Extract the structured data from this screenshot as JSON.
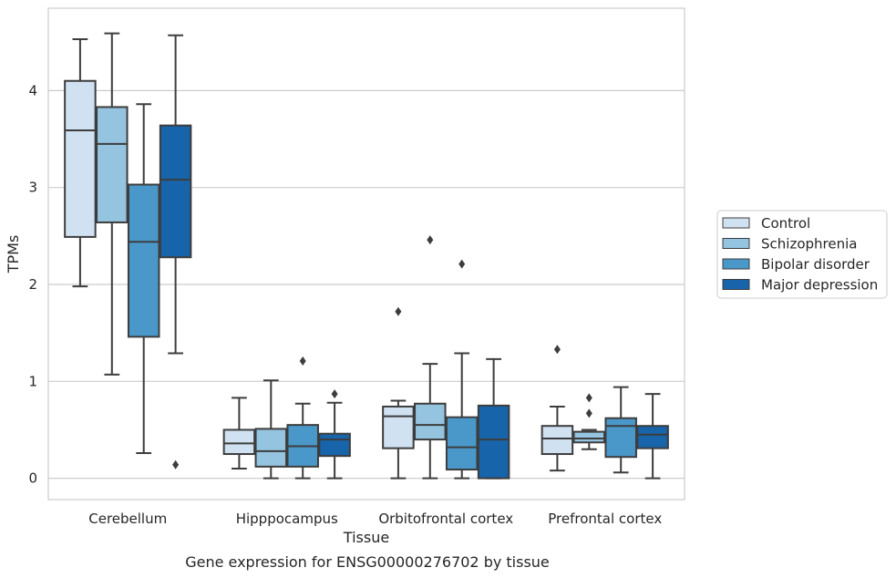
{
  "caption": "Gene expression for ENSG00000276702 by tissue",
  "chart_data": {
    "type": "box",
    "xlabel": "Tissue",
    "ylabel": "TPMs",
    "ylim": [
      -0.22,
      4.85
    ],
    "yticks": [
      0,
      1,
      2,
      3,
      4
    ],
    "ytick_labels": [
      "0",
      "1",
      "2",
      "3",
      "4"
    ],
    "grid": "horizontal",
    "legend_position": "right",
    "categories": [
      "Cerebellum",
      "Hipppocampus",
      "Orbitofrontal cortex",
      "Prefrontal cortex"
    ],
    "series": [
      {
        "name": "Control",
        "color": "#d0e1f2",
        "boxes": [
          {
            "whislo": 1.98,
            "q1": 2.49,
            "med": 3.59,
            "q3": 4.1,
            "whishi": 4.53,
            "fliers": []
          },
          {
            "whislo": 0.1,
            "q1": 0.25,
            "med": 0.36,
            "q3": 0.5,
            "whishi": 0.83,
            "fliers": []
          },
          {
            "whislo": 0.0,
            "q1": 0.31,
            "med": 0.64,
            "q3": 0.74,
            "whishi": 0.8,
            "fliers": [
              1.72
            ]
          },
          {
            "whislo": 0.08,
            "q1": 0.25,
            "med": 0.41,
            "q3": 0.54,
            "whishi": 0.74,
            "fliers": [
              1.33
            ]
          }
        ]
      },
      {
        "name": "Schizophrenia",
        "color": "#94c4df",
        "boxes": [
          {
            "whislo": 1.07,
            "q1": 2.64,
            "med": 3.45,
            "q3": 3.83,
            "whishi": 4.59,
            "fliers": []
          },
          {
            "whislo": 0.0,
            "q1": 0.12,
            "med": 0.28,
            "q3": 0.51,
            "whishi": 1.01,
            "fliers": []
          },
          {
            "whislo": 0.0,
            "q1": 0.4,
            "med": 0.55,
            "q3": 0.77,
            "whishi": 1.18,
            "fliers": [
              2.46
            ]
          },
          {
            "whislo": 0.3,
            "q1": 0.37,
            "med": 0.41,
            "q3": 0.48,
            "whishi": 0.5,
            "fliers": [
              0.83,
              0.67
            ]
          }
        ]
      },
      {
        "name": "Bipolar disorder",
        "color": "#4a98c9",
        "boxes": [
          {
            "whislo": 0.26,
            "q1": 1.46,
            "med": 2.44,
            "q3": 3.03,
            "whishi": 3.86,
            "fliers": []
          },
          {
            "whislo": 0.0,
            "q1": 0.12,
            "med": 0.33,
            "q3": 0.55,
            "whishi": 0.77,
            "fliers": [
              1.21
            ]
          },
          {
            "whislo": 0.0,
            "q1": 0.09,
            "med": 0.32,
            "q3": 0.63,
            "whishi": 1.29,
            "fliers": [
              2.21
            ]
          },
          {
            "whislo": 0.06,
            "q1": 0.22,
            "med": 0.54,
            "q3": 0.62,
            "whishi": 0.94,
            "fliers": []
          }
        ]
      },
      {
        "name": "Major depression",
        "color": "#1764ab",
        "boxes": [
          {
            "whislo": 1.29,
            "q1": 2.28,
            "med": 3.08,
            "q3": 3.64,
            "whishi": 4.57,
            "fliers": [
              0.14
            ]
          },
          {
            "whislo": 0.0,
            "q1": 0.23,
            "med": 0.4,
            "q3": 0.46,
            "whishi": 0.78,
            "fliers": [
              0.87
            ]
          },
          {
            "whislo": 0.0,
            "q1": 0.0,
            "med": 0.4,
            "q3": 0.75,
            "whishi": 1.23,
            "fliers": []
          },
          {
            "whislo": 0.0,
            "q1": 0.31,
            "med": 0.45,
            "q3": 0.54,
            "whishi": 0.87,
            "fliers": []
          }
        ]
      }
    ]
  }
}
